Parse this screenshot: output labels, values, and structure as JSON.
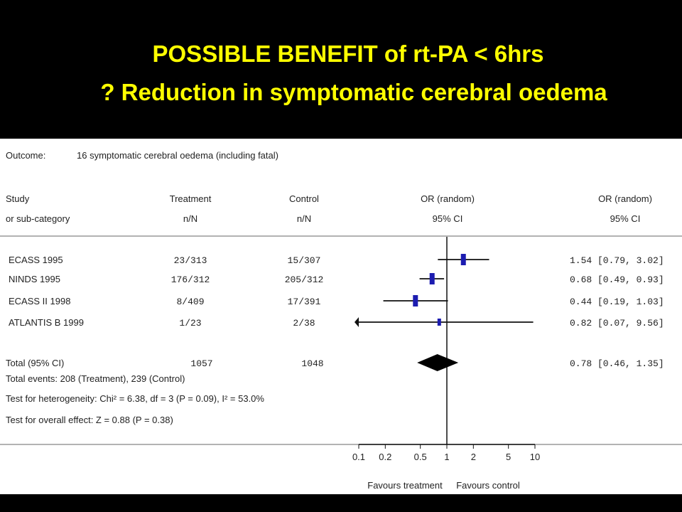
{
  "slide": {
    "title_line1": "POSSIBLE BENEFIT of rt-PA < 6hrs",
    "title_line2": "? Reduction in symptomatic cerebral oedema",
    "title_color": "#ffff00",
    "background": "#000000"
  },
  "chart_data": {
    "type": "forest",
    "outcome_label": "Outcome:",
    "outcome": "16 symptomatic cerebral oedema (including fatal)",
    "headers": {
      "study": [
        "Study",
        "or sub-category"
      ],
      "treatment": [
        "Treatment",
        "n/N"
      ],
      "control": [
        "Control",
        "n/N"
      ],
      "plot": [
        "OR (random)",
        "95% CI"
      ],
      "or_col": [
        "OR (random)",
        "95% CI"
      ]
    },
    "studies": [
      {
        "name": "ECASS 1995",
        "treatment": "23/313",
        "control": "15/307",
        "or": 1.54,
        "lo": 0.79,
        "hi": 3.02,
        "or_text": "1.54 [0.79, 3.02]"
      },
      {
        "name": "NINDS 1995",
        "treatment": "176/312",
        "control": "205/312",
        "or": 0.68,
        "lo": 0.49,
        "hi": 0.93,
        "or_text": "0.68 [0.49, 0.93]"
      },
      {
        "name": "ECASS II 1998",
        "treatment": "8/409",
        "control": "17/391",
        "or": 0.44,
        "lo": 0.19,
        "hi": 1.03,
        "or_text": "0.44 [0.19, 1.03]"
      },
      {
        "name": "ATLANTIS B 1999",
        "treatment": "1/23",
        "control": "2/38",
        "or": 0.82,
        "lo": 0.07,
        "hi": 9.56,
        "or_text": "0.82 [0.07, 9.56]"
      }
    ],
    "total": {
      "name": "Total (95% CI)",
      "treatment": "1057",
      "control": "1048",
      "or": 0.78,
      "lo": 0.46,
      "hi": 1.35,
      "or_text": "0.78 [0.46, 1.35]"
    },
    "footnotes": [
      "Total events: 208 (Treatment), 239 (Control)",
      "Test for heterogeneity: Chi² = 6.38, df = 3 (P = 0.09), I² = 53.0%",
      "Test for overall effect: Z = 0.88 (P = 0.38)"
    ],
    "x_scale": "log",
    "xlim": [
      0.1,
      10
    ],
    "x_ticks": [
      0.1,
      0.2,
      0.5,
      1,
      2,
      5,
      10
    ],
    "x_tick_labels": [
      "0.1",
      "0.2",
      "0.5",
      "1",
      "2",
      "5",
      "10"
    ],
    "favours_left": "Favours treatment",
    "favours_right": "Favours control",
    "marker_color": "#1c1cb0"
  }
}
